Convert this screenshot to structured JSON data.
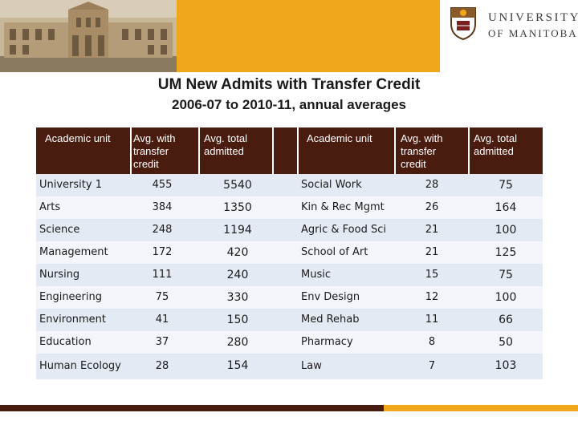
{
  "header": {
    "university_line1": "UNIVERSITY",
    "university_line2": "OF MANITOBA",
    "colors": {
      "gold": "#f0a81a",
      "maroon": "#4a1c10"
    }
  },
  "title": "UM New Admits with Transfer Credit",
  "subtitle": "2006-07 to 2010-11, annual averages",
  "table": {
    "headers": [
      "Academic unit",
      "Avg. with transfer credit",
      "Avg. total admitted",
      "Academic unit",
      "Avg. with transfer credit",
      "Avg. total admitted"
    ],
    "rows": [
      {
        "unit1": "University 1",
        "cred1": "455",
        "adm1": "5540",
        "unit2": "Social Work",
        "cred2": "28",
        "adm2": "75"
      },
      {
        "unit1": "Arts",
        "cred1": "384",
        "adm1": "1350",
        "unit2": "Kin & Rec Mgmt",
        "cred2": "26",
        "adm2": "164"
      },
      {
        "unit1": "Science",
        "cred1": "248",
        "adm1": "1194",
        "unit2": "Agric & Food Sci",
        "cred2": "21",
        "adm2": "100"
      },
      {
        "unit1": "Management",
        "cred1": "172",
        "adm1": "420",
        "unit2": "School of Art",
        "cred2": "21",
        "adm2": "125"
      },
      {
        "unit1": "Nursing",
        "cred1": "111",
        "adm1": "240",
        "unit2": "Music",
        "cred2": "15",
        "adm2": "75"
      },
      {
        "unit1": "Engineering",
        "cred1": "75",
        "adm1": "330",
        "unit2": "Env Design",
        "cred2": "12",
        "adm2": "100"
      },
      {
        "unit1": "Environment",
        "cred1": "41",
        "adm1": "150",
        "unit2": "Med Rehab",
        "cred2": "11",
        "adm2": "66"
      },
      {
        "unit1": "Education",
        "cred1": "37",
        "adm1": "280",
        "unit2": "Pharmacy",
        "cred2": "8",
        "adm2": "50"
      },
      {
        "unit1": "Human Ecology",
        "cred1": "28",
        "adm1": "154",
        "unit2": "Law",
        "cred2": "7",
        "adm2": "103"
      }
    ]
  }
}
